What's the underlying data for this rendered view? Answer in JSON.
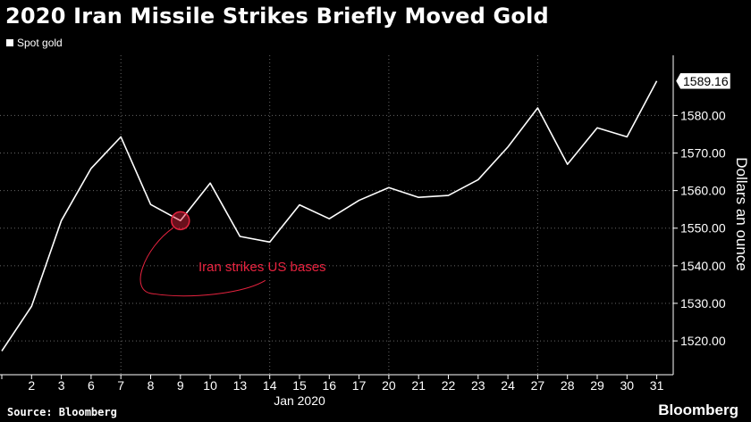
{
  "title": "2020 Iran Missile Strikes Briefly Moved Gold",
  "legend": {
    "label": "Spot gold"
  },
  "footer": {
    "source": "Source: Bloomberg",
    "brand": "Bloomberg"
  },
  "colors": {
    "background": "#000000",
    "line": "#ffffff",
    "annotation": "#e8233f",
    "grid": "#666666"
  },
  "chart_data": {
    "type": "line",
    "title": "2020 Iran Missile Strikes Briefly Moved Gold",
    "xlabel": "Jan 2020",
    "ylabel": "Dollars an ounce",
    "categories": [
      "",
      "2",
      "3",
      "6",
      "7",
      "8",
      "9",
      "10",
      "13",
      "14",
      "15",
      "16",
      "17",
      "20",
      "21",
      "22",
      "23",
      "24",
      "27",
      "28",
      "29",
      "30",
      "31"
    ],
    "series": [
      {
        "name": "Spot gold",
        "values": [
          1517.3,
          1529.2,
          1552.0,
          1565.9,
          1574.3,
          1556.3,
          1552.0,
          1562.0,
          1547.8,
          1546.3,
          1556.2,
          1552.5,
          1557.4,
          1560.8,
          1558.2,
          1558.7,
          1562.9,
          1571.6,
          1582.0,
          1567.0,
          1576.7,
          1574.3,
          1589.16
        ]
      }
    ],
    "ylim": [
      1511,
      1596
    ],
    "yticks": [
      1520,
      1530,
      1540,
      1550,
      1560,
      1570,
      1580
    ],
    "ytick_labels": [
      "1520.00",
      "1530.00",
      "1540.00",
      "1550.00",
      "1560.00",
      "1570.00",
      "1580.00"
    ],
    "last_value_label": "1589.16",
    "grid": true,
    "annotation": {
      "text": "Iran strikes US bases",
      "category": "9"
    }
  }
}
